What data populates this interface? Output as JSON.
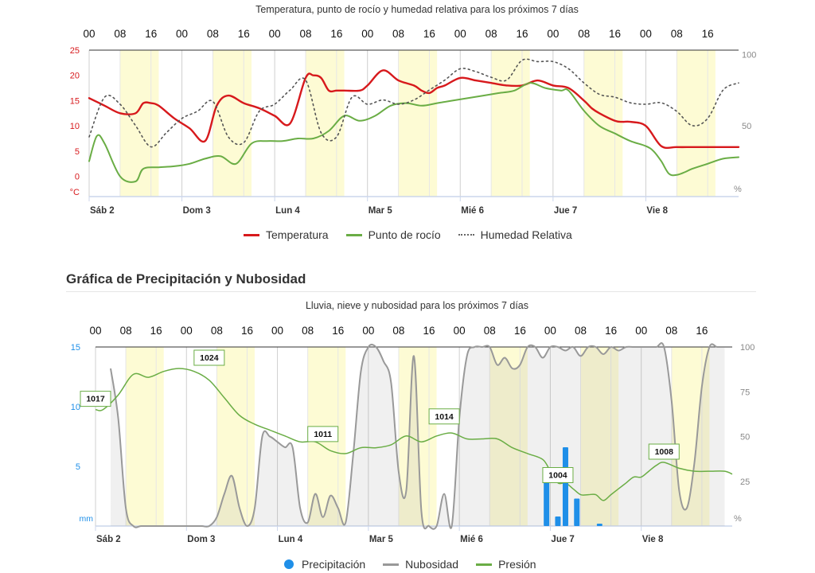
{
  "section": {
    "title": "Gráfica de Precipitación y Nubosidad"
  },
  "chart_data": [
    {
      "type": "line",
      "title": "Temperatura, punto de rocío y humedad relativa para los próximos 7 días",
      "top_hour_labels": [
        "00",
        "08",
        "16",
        "00",
        "08",
        "16",
        "00",
        "08",
        "16",
        "00",
        "08",
        "16",
        "00",
        "08",
        "16",
        "00",
        "08",
        "16",
        "00",
        "08",
        "16"
      ],
      "day_labels": [
        "Sáb 2",
        "Dom 3",
        "Lun 4",
        "Mar 5",
        "Mié 6",
        "Jue 7",
        "Vie 8"
      ],
      "x_unit": "hours from Sáb 2 00:00",
      "xlim": [
        0,
        168
      ],
      "left_axis": {
        "unit": "°C",
        "ticks": [
          0,
          5,
          10,
          15,
          20,
          25
        ],
        "ylim": [
          -4,
          25
        ]
      },
      "right_axis": {
        "unit": "%",
        "ticks": [
          50,
          100
        ],
        "ylim": [
          0,
          100
        ]
      },
      "grid": true,
      "legend_position": "bottom",
      "colors": {
        "temp": "#d7191c",
        "dew": "#6aad45",
        "hum": "#555555",
        "left_axis": "#d7191c",
        "right_axis": "#888888",
        "night_band": "#fdfbd4"
      },
      "night_bands_hours": [
        [
          8,
          18
        ],
        [
          32,
          42
        ],
        [
          56,
          66
        ],
        [
          80,
          90
        ],
        [
          104,
          114
        ],
        [
          128,
          138
        ],
        [
          152,
          162
        ]
      ],
      "series": [
        {
          "name": "Temperatura",
          "axis": "left",
          "x": [
            0,
            4,
            8,
            12,
            14,
            16,
            18,
            22,
            26,
            30,
            33,
            36,
            40,
            44,
            48,
            52,
            56,
            58,
            60,
            62,
            64,
            66,
            70,
            72,
            76,
            80,
            84,
            86,
            88,
            90,
            92,
            96,
            100,
            104,
            108,
            112,
            116,
            120,
            124,
            128,
            130,
            132,
            136,
            138,
            140,
            144,
            148,
            152,
            156,
            160,
            164,
            168
          ],
          "values": [
            15.5,
            14,
            12.5,
            12.5,
            14.5,
            14.5,
            14,
            11.5,
            9.5,
            7,
            14,
            16,
            14.5,
            13.5,
            12,
            10.5,
            19.5,
            20,
            19.5,
            17,
            17,
            17,
            17,
            18,
            21,
            19,
            18,
            17,
            16.5,
            17.5,
            18,
            19.5,
            19,
            18.5,
            18,
            18,
            19,
            18,
            17.5,
            15,
            13.5,
            12.5,
            11,
            10.8,
            10.8,
            10,
            6,
            5.8,
            5.8,
            5.8,
            5.8,
            5.8
          ]
        },
        {
          "name": "Punto de rocío",
          "axis": "left",
          "x": [
            0,
            2,
            4,
            8,
            12,
            14,
            18,
            22,
            26,
            30,
            34,
            38,
            42,
            46,
            50,
            54,
            58,
            62,
            66,
            70,
            74,
            78,
            82,
            86,
            90,
            94,
            98,
            102,
            106,
            110,
            114,
            118,
            122,
            124,
            128,
            132,
            136,
            140,
            144,
            146,
            148,
            150,
            152,
            154,
            156,
            160,
            164,
            168
          ],
          "values": [
            3,
            8,
            6.5,
            0,
            -1,
            1.5,
            1.8,
            2,
            2.5,
            3.5,
            4,
            2.5,
            6.5,
            7,
            7,
            7.5,
            7.5,
            9,
            12,
            11,
            12,
            14,
            14.5,
            14,
            14.5,
            15,
            15.5,
            16,
            16.5,
            17,
            18.5,
            17.5,
            17,
            17,
            13,
            10,
            8.5,
            7,
            6,
            5,
            3,
            0.5,
            0.3,
            0.8,
            1.5,
            2.5,
            3.5,
            3.8
          ]
        },
        {
          "name": "Humedad Relativa",
          "axis": "right",
          "dotted": true,
          "x": [
            0,
            4,
            8,
            12,
            16,
            20,
            24,
            28,
            32,
            36,
            40,
            44,
            48,
            52,
            56,
            60,
            64,
            68,
            72,
            76,
            80,
            84,
            88,
            92,
            96,
            100,
            104,
            108,
            112,
            116,
            120,
            124,
            128,
            132,
            136,
            140,
            144,
            148,
            152,
            156,
            160,
            164,
            168
          ],
          "values": [
            42,
            70,
            65,
            50,
            35,
            45,
            55,
            60,
            67,
            42,
            38,
            60,
            65,
            75,
            82,
            45,
            42,
            70,
            65,
            68,
            65,
            68,
            75,
            82,
            90,
            88,
            84,
            82,
            96,
            95,
            95,
            90,
            80,
            72,
            70,
            66,
            65,
            66,
            60,
            50,
            55,
            75,
            80
          ]
        }
      ]
    },
    {
      "type": "line",
      "title": "Lluvia, nieve y nubosidad para los próximos 7 días",
      "top_hour_labels": [
        "00",
        "08",
        "16",
        "00",
        "08",
        "16",
        "00",
        "08",
        "16",
        "00",
        "08",
        "16",
        "00",
        "08",
        "16",
        "00",
        "08",
        "16",
        "00",
        "08",
        "16"
      ],
      "day_labels": [
        "Sáb 2",
        "Dom 3",
        "Lun 4",
        "Mar 5",
        "Mié 6",
        "Jue 7",
        "Vie 8"
      ],
      "x_unit": "hours from Sáb 2 00:00",
      "xlim": [
        0,
        168
      ],
      "left_axis": {
        "unit": "mm",
        "ticks": [
          5,
          10,
          15
        ],
        "ylim": [
          0,
          15
        ]
      },
      "right_axis": {
        "unit": "%",
        "ticks": [
          25,
          50,
          75,
          100
        ],
        "ylim": [
          0,
          100
        ]
      },
      "grid": true,
      "legend_position": "bottom",
      "colors": {
        "precip": "#1f8fe8",
        "cloud": "#999999",
        "pressure": "#6aad45",
        "left_axis": "#1f8fe8",
        "right_axis": "#888888",
        "night_band": "#fdfbd4",
        "label_border": "#6aad45"
      },
      "night_bands_hours": [
        [
          8,
          18
        ],
        [
          32,
          42
        ],
        [
          56,
          66
        ],
        [
          80,
          90
        ],
        [
          104,
          114
        ],
        [
          128,
          138
        ],
        [
          152,
          162
        ]
      ],
      "pressure_labels": [
        {
          "x": 0,
          "text": "1017"
        },
        {
          "x": 30,
          "text": "1024"
        },
        {
          "x": 60,
          "text": "1011"
        },
        {
          "x": 92,
          "text": "1014"
        },
        {
          "x": 122,
          "text": "1004"
        },
        {
          "x": 150,
          "text": "1008"
        }
      ],
      "series": [
        {
          "name": "Precipitación",
          "kind": "bar",
          "axis": "left",
          "x": [
            119,
            122,
            124,
            127,
            133
          ],
          "values": [
            3.9,
            0.8,
            6.6,
            2.3,
            0.2
          ]
        },
        {
          "name": "Nubosidad",
          "kind": "line",
          "axis": "right",
          "x": [
            4,
            6,
            8,
            10,
            12,
            14,
            16,
            18,
            20,
            22,
            24,
            26,
            28,
            30,
            32,
            34,
            36,
            38,
            40,
            42,
            44,
            46,
            48,
            50,
            52,
            54,
            56,
            58,
            60,
            62,
            64,
            66,
            68,
            70,
            72,
            74,
            76,
            78,
            80,
            82,
            84,
            86,
            88,
            90,
            92,
            94,
            96,
            98,
            100,
            102,
            104,
            106,
            108,
            110,
            112,
            114,
            116,
            118,
            120,
            122,
            124,
            126,
            128,
            130,
            132,
            134,
            136,
            138,
            140,
            142,
            144,
            146,
            148,
            150,
            152,
            154,
            156,
            158,
            160,
            162,
            164,
            166
          ],
          "values": [
            88,
            60,
            10,
            0,
            0,
            0,
            0,
            0,
            0,
            0,
            0,
            0,
            0,
            0,
            5,
            18,
            28,
            10,
            0,
            10,
            50,
            50,
            47,
            44,
            44,
            10,
            2,
            18,
            5,
            17,
            10,
            2,
            40,
            86,
            100,
            100,
            92,
            80,
            30,
            20,
            95,
            8,
            0,
            0,
            18,
            0,
            60,
            95,
            100,
            100,
            100,
            90,
            94,
            88,
            90,
            100,
            100,
            94,
            100,
            100,
            98,
            100,
            95,
            100,
            100,
            96,
            100,
            98,
            100,
            100,
            100,
            100,
            100,
            100,
            70,
            20,
            10,
            35,
            78,
            100,
            100,
            100
          ]
        },
        {
          "name": "Presión",
          "kind": "line",
          "axis": "right",
          "x": [
            0,
            2,
            6,
            10,
            14,
            18,
            22,
            26,
            30,
            34,
            38,
            42,
            46,
            50,
            54,
            58,
            62,
            66,
            70,
            74,
            78,
            82,
            86,
            90,
            94,
            98,
            102,
            106,
            110,
            114,
            118,
            120,
            122,
            124,
            126,
            128,
            130,
            132,
            134,
            136,
            138,
            140,
            142,
            144,
            146,
            148,
            150,
            154,
            158,
            162,
            166,
            168
          ],
          "values": [
            1017,
            1017,
            1019.5,
            1023,
            1022.5,
            1023.5,
            1024,
            1023.5,
            1022,
            1019,
            1016,
            1014.5,
            1013.5,
            1012.5,
            1011.5,
            1011.5,
            1010,
            1009.5,
            1010.5,
            1010.5,
            1011,
            1012.5,
            1011.5,
            1012.5,
            1013,
            1012,
            1012,
            1012,
            1010.5,
            1009.5,
            1008.5,
            1006.5,
            1004.5,
            1004.5,
            1003.5,
            1002.5,
            1002.5,
            1002.5,
            1001.5,
            1002.5,
            1003.5,
            1004.5,
            1005.5,
            1005.5,
            1006.5,
            1007.5,
            1008,
            1007,
            1006.5,
            1006.5,
            1006.5,
            1006
          ]
        }
      ]
    }
  ]
}
